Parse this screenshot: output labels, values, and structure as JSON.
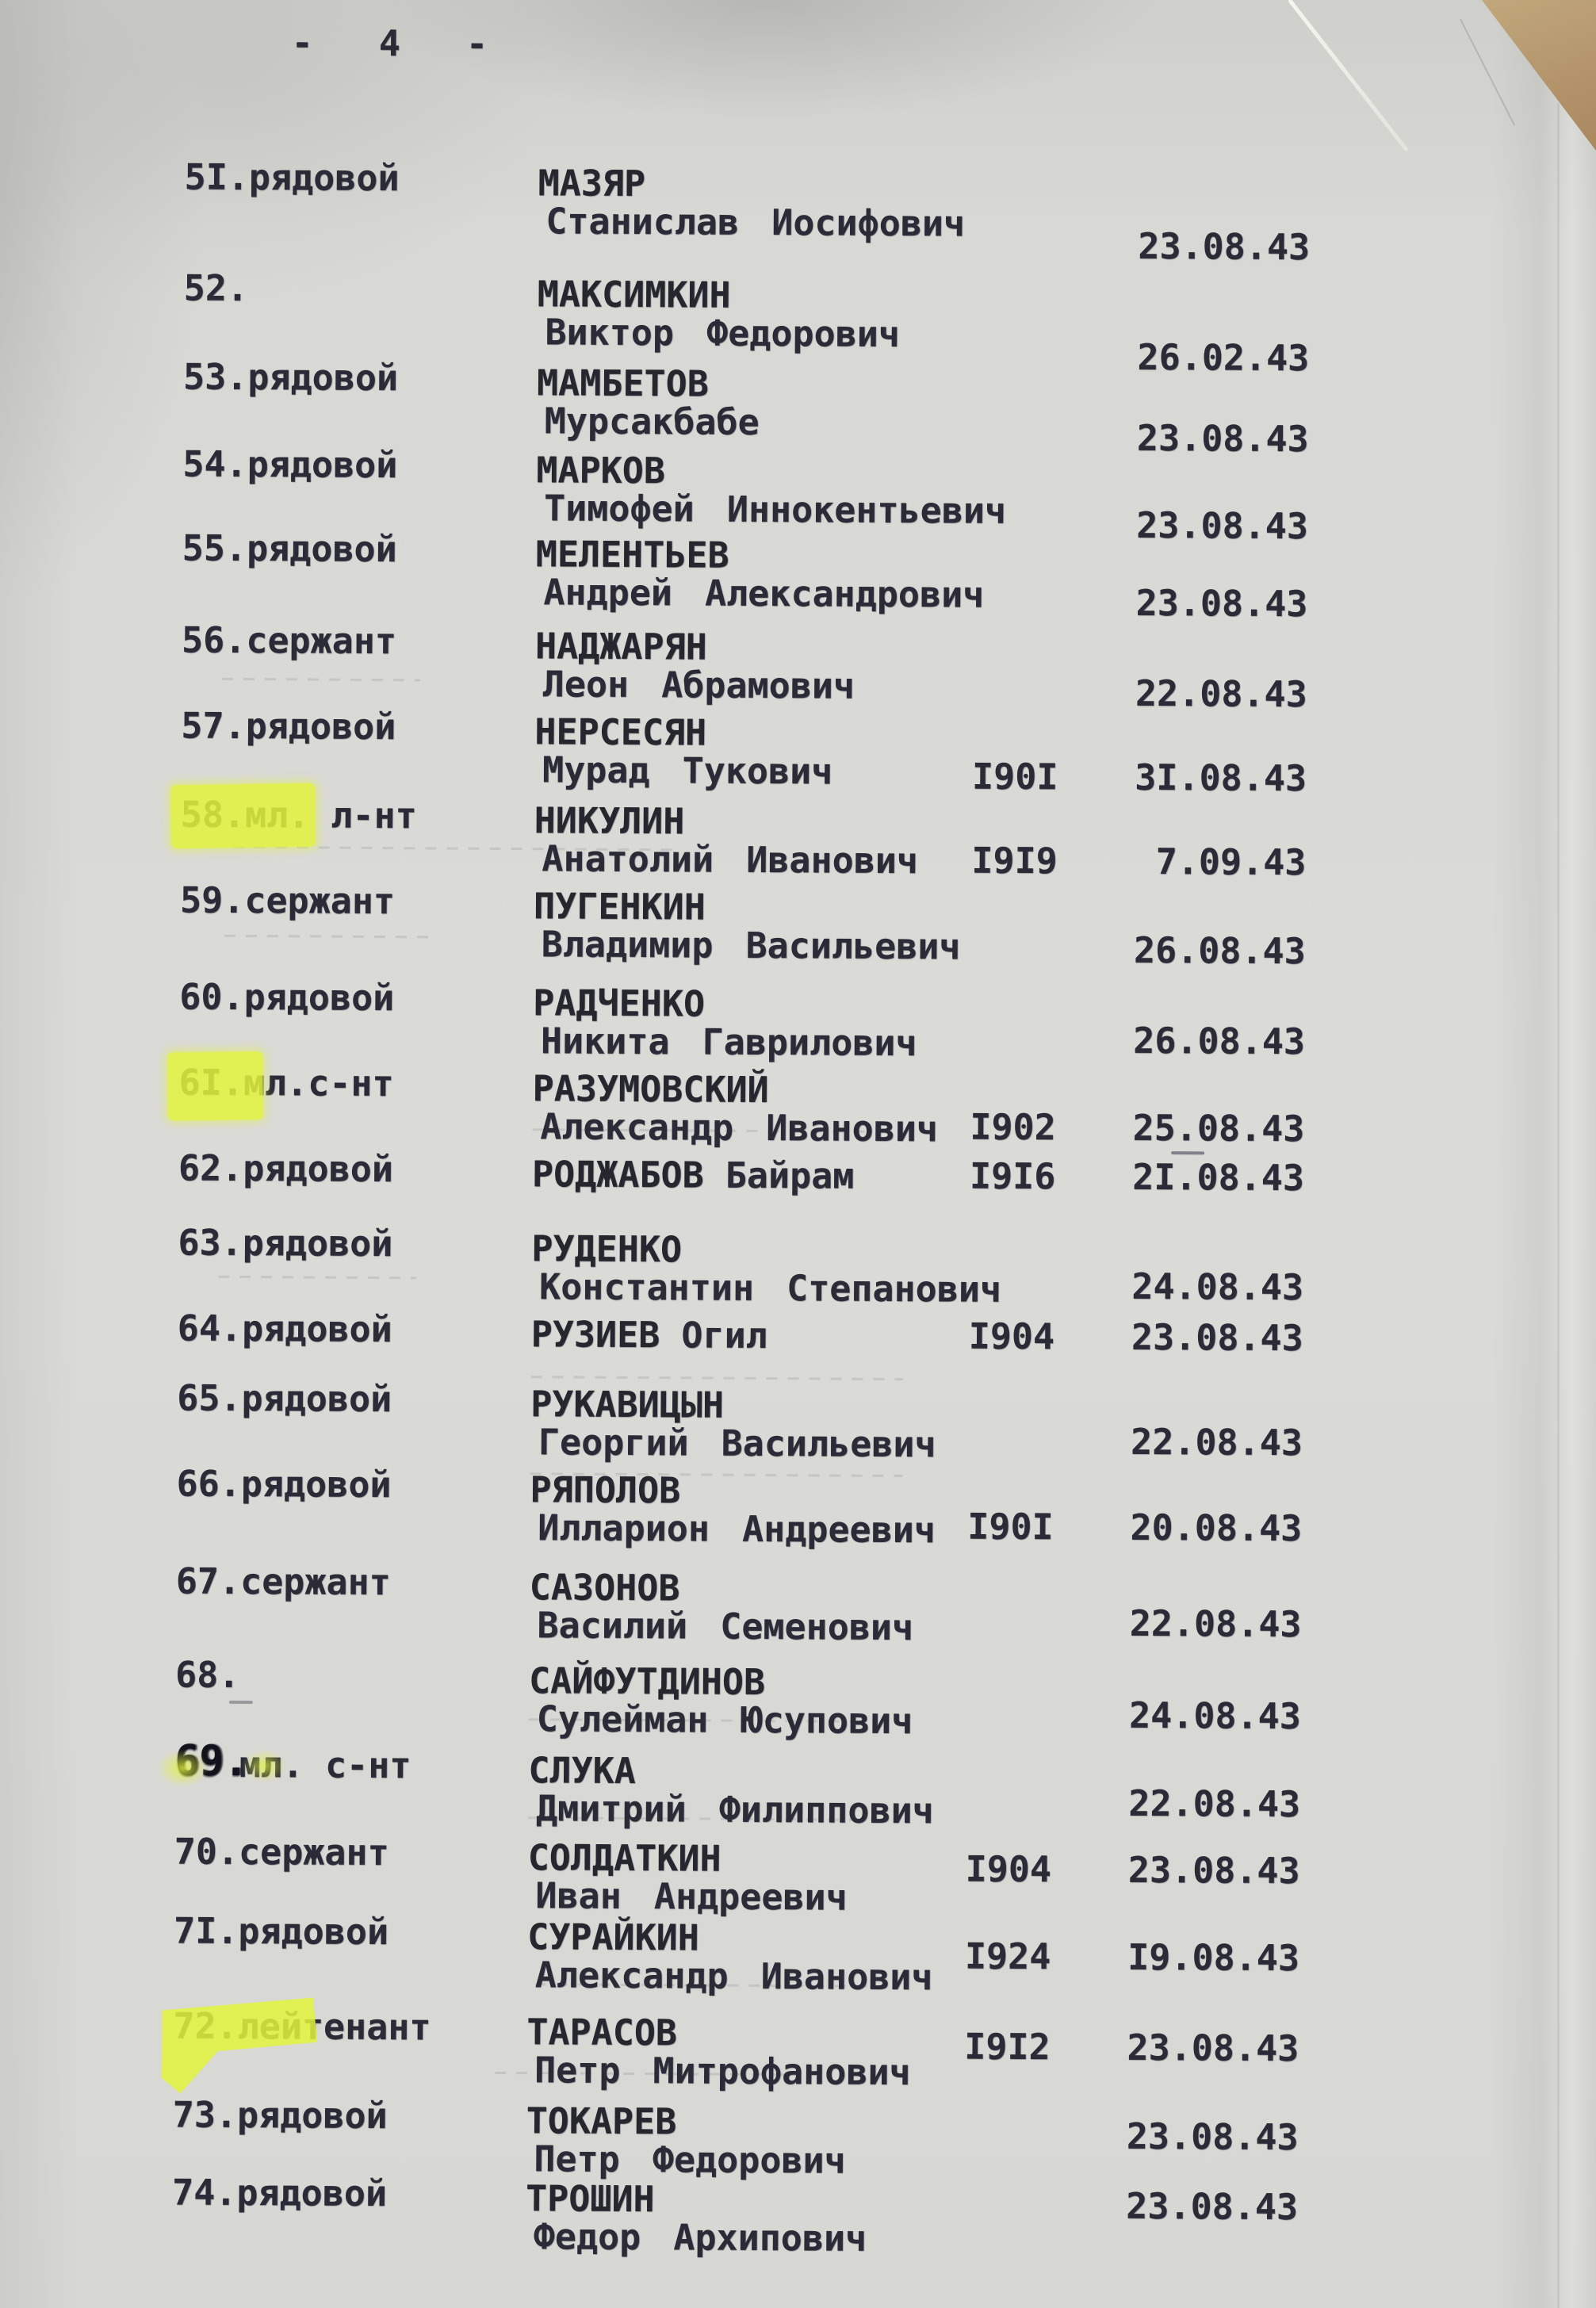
{
  "document": {
    "page_header": "- 4 -",
    "kind": "scanned typewritten casualty name list, Cyrillic",
    "paper_color": "#d8d8d4",
    "ink_color": "#2b2b38",
    "highlight_color": "#e3f43c",
    "backing_color": "#b3936a"
  },
  "entries": [
    {
      "num": "5I.",
      "rank": "рядовой",
      "surname": "МАЗЯР",
      "name": "Станислав Иосифович",
      "year": "",
      "date": "23.08.43",
      "highlight": false,
      "ink_over": false,
      "single_line": false
    },
    {
      "num": "52.",
      "rank": "",
      "surname": "МАКСИМКИН",
      "name": "Виктор Федорович",
      "year": "",
      "date": "26.02.43",
      "highlight": false,
      "ink_over": false,
      "single_line": false
    },
    {
      "num": "53.",
      "rank": "рядовой",
      "surname": "МАМБЕТОВ",
      "name": "Мурсакбабе",
      "year": "",
      "date": "23.08.43",
      "highlight": false,
      "ink_over": false,
      "single_line": false
    },
    {
      "num": "54.",
      "rank": "рядовой",
      "surname": "МАРКОВ",
      "name": "Тимофей Иннокентьевич",
      "year": "",
      "date": "23.08.43",
      "highlight": false,
      "ink_over": false,
      "single_line": false
    },
    {
      "num": "55.",
      "rank": "рядовой",
      "surname": "МЕЛЕНТЬЕВ",
      "name": "Андрей Александрович",
      "year": "",
      "date": "23.08.43",
      "highlight": false,
      "ink_over": false,
      "single_line": false
    },
    {
      "num": "56.",
      "rank": "сержант",
      "surname": "НАДЖАРЯН",
      "name": "Леон Абрамович",
      "year": "",
      "date": "22.08.43",
      "highlight": false,
      "ink_over": false,
      "single_line": false
    },
    {
      "num": "57.",
      "rank": "рядовой",
      "surname": "НЕРСЕСЯН",
      "name": "Мурад Тукович",
      "year": "I90I",
      "date": "3I.08.43",
      "highlight": false,
      "ink_over": false,
      "single_line": false
    },
    {
      "num": "58.",
      "rank": "мл. л-нт",
      "surname": "НИКУЛИН",
      "name": "Анатолий Иванович",
      "year": "I9I9",
      "date": "7.09.43",
      "highlight": true,
      "ink_over": false,
      "single_line": false
    },
    {
      "num": "59.",
      "rank": "сержант",
      "surname": "ПУГЕНКИН",
      "name": "Владимир Васильевич",
      "year": "",
      "date": "26.08.43",
      "highlight": false,
      "ink_over": false,
      "single_line": false
    },
    {
      "num": "60.",
      "rank": "рядовой",
      "surname": "РАДЧЕНКО",
      "name": "Никита Гаврилович",
      "year": "",
      "date": "26.08.43",
      "highlight": false,
      "ink_over": false,
      "single_line": false
    },
    {
      "num": "6I.",
      "rank": "мл.с-нт",
      "surname": "РАЗУМОВСКИЙ",
      "name": "Александр Иванович",
      "year": "I902",
      "date": "25.08.43",
      "highlight": true,
      "ink_over": false,
      "single_line": false
    },
    {
      "num": "62.",
      "rank": "рядовой",
      "surname": "РОДЖАБОВ",
      "name": "Байрам",
      "year": "I9I6",
      "date": "2I.08.43",
      "highlight": false,
      "ink_over": false,
      "single_line": true
    },
    {
      "num": "63.",
      "rank": "рядовой",
      "surname": "РУДЕНКО",
      "name": "Константин Степанович",
      "year": "",
      "date": "24.08.43",
      "highlight": false,
      "ink_over": false,
      "single_line": false
    },
    {
      "num": "64.",
      "rank": "рядовой",
      "surname": "РУЗИЕВ",
      "name": "Огил",
      "year": "I904",
      "date": "23.08.43",
      "highlight": false,
      "ink_over": false,
      "single_line": true
    },
    {
      "num": "65.",
      "rank": "рядовой",
      "surname": "РУКАВИЦЫН",
      "name": "Георгий Васильевич",
      "year": "",
      "date": "22.08.43",
      "highlight": false,
      "ink_over": false,
      "single_line": false
    },
    {
      "num": "66.",
      "rank": "рядовой",
      "surname": "РЯПОЛОВ",
      "name": "Илларион Андреевич",
      "year": "I90I",
      "date": "20.08.43",
      "highlight": false,
      "ink_over": false,
      "single_line": false
    },
    {
      "num": "67.",
      "rank": "сержант",
      "surname": "САЗОНОВ",
      "name": "Василий Семенович",
      "year": "",
      "date": "22.08.43",
      "highlight": false,
      "ink_over": false,
      "single_line": false
    },
    {
      "num": "68.",
      "rank": "",
      "surname": "САЙФУТДИНОВ",
      "name": "Сулейман Юсупович",
      "year": "",
      "date": "24.08.43",
      "highlight": false,
      "ink_over": false,
      "single_line": false
    },
    {
      "num": "69.",
      "rank": "мл. с-нт",
      "surname": "СЛУКА",
      "name": "Дмитрий Филиппович",
      "year": "",
      "date": "22.08.43",
      "highlight": true,
      "ink_over": true,
      "single_line": false
    },
    {
      "num": "70.",
      "rank": "сержант",
      "surname": "СОЛДАТКИН",
      "name": "Иван Андреевич",
      "year": "I904",
      "date": "23.08.43",
      "highlight": false,
      "ink_over": false,
      "single_line": false
    },
    {
      "num": "7I.",
      "rank": "рядовой",
      "surname": "СУРАЙКИН",
      "name": "Александр Иванович",
      "year": "I924",
      "date": "I9.08.43",
      "highlight": false,
      "ink_over": false,
      "single_line": false
    },
    {
      "num": "72.",
      "rank": "лейтенант",
      "surname": "ТАРАСОВ",
      "name": "Петр Митрофанович",
      "year": "I9I2",
      "date": "23.08.43",
      "highlight": true,
      "ink_over": false,
      "single_line": false
    },
    {
      "num": "73.",
      "rank": "рядовой",
      "surname": "ТОКАРЕВ",
      "name": "Петр Федорович",
      "year": "",
      "date": "23.08.43",
      "highlight": false,
      "ink_over": false,
      "single_line": false
    },
    {
      "num": "74.",
      "rank": "рядовой",
      "surname": "ТРОШИН",
      "name": "Федор Архипович",
      "year": "",
      "date": "23.08.43",
      "highlight": false,
      "ink_over": false,
      "single_line": false
    }
  ]
}
